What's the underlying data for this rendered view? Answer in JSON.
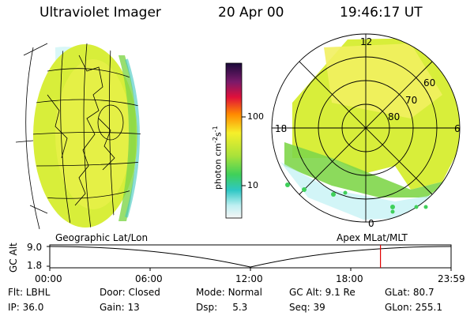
{
  "header": {
    "title": "Ultraviolet Imager",
    "date": "20 Apr 00",
    "time": "19:46:17 UT"
  },
  "colorbar": {
    "unit_prefix": "photon cm",
    "unit_sup1": "-2",
    "unit_mid": "s",
    "unit_sup2": "-1",
    "ticks": [
      "100",
      "10"
    ]
  },
  "polar": {
    "mlt_labels": {
      "top": "12",
      "left": "18",
      "right": "6",
      "bottom": "0"
    },
    "lat_labels": [
      "60",
      "70",
      "80"
    ]
  },
  "timeline": {
    "left_label": "Geographic Lat/Lon",
    "right_label": "Apex MLat/MLT",
    "axis_title": "GC Alt",
    "y_top": "9.0",
    "y_bottom": "1.8",
    "x_ticks": [
      "00:00",
      "06:00",
      "12:00",
      "18:00",
      "23:59"
    ],
    "current_fraction": 0.824
  },
  "status": {
    "flt_label": "Flt:",
    "flt_value": "LBHL",
    "door_label": "Door:",
    "door_value": "Closed",
    "mode_label": "Mode:",
    "mode_value": "Normal",
    "gcalt_label": "GC Alt:",
    "gcalt_value": "9.1 Re",
    "glat_label": "GLat:",
    "glat_value": "80.7",
    "ip_label": "IP:",
    "ip_value": "36.0",
    "gain_label": "Gain:",
    "gain_value": "13",
    "dsp_label": "Dsp:",
    "dsp_value": "5.3",
    "seq_label": "Seq:",
    "seq_value": "39",
    "glon_label": "GLon:",
    "glon_value": "255.1"
  },
  "colors": {
    "aurora_main": "#d8ee3a",
    "aurora_bright": "#f2f060",
    "aurora_edge": "#7fd64a",
    "aurora_low": "#3fc7c0",
    "marker": "#e00000"
  }
}
